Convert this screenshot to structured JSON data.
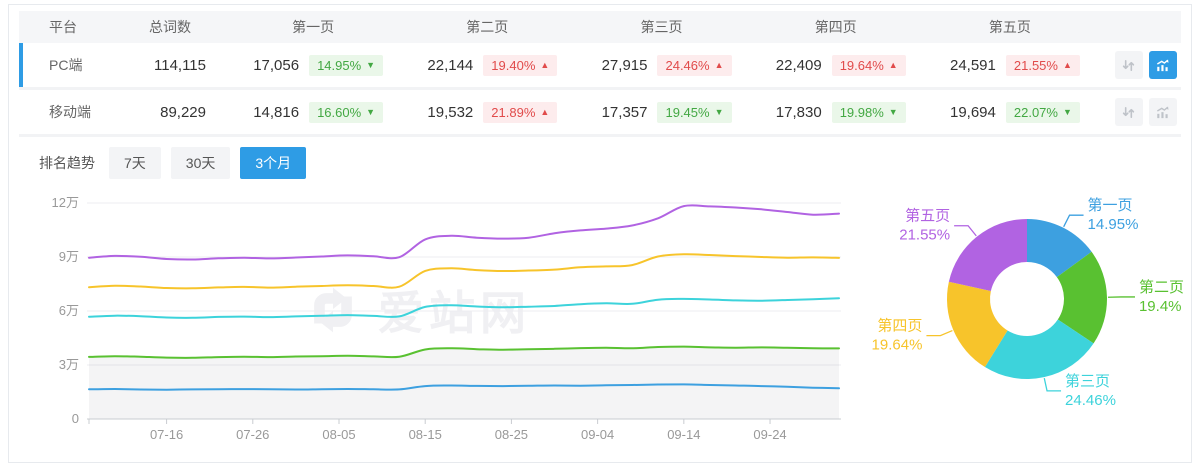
{
  "colors": {
    "accent": "#2e9ce5",
    "up_red": "#e14b4b",
    "down_green": "#43a843",
    "page1": "#3da0e0",
    "page2": "#59c131",
    "page3": "#3dd3db",
    "page4": "#f7c42b",
    "page5": "#b163e2"
  },
  "table": {
    "columns": [
      "平台",
      "总词数",
      "第一页",
      "第二页",
      "第三页",
      "第四页",
      "第五页"
    ],
    "rows": [
      {
        "platform": "PC端",
        "total": "114,115",
        "selected": true,
        "chart_active": true,
        "pages": [
          {
            "value": "17,056",
            "change": "14.95%",
            "direction": "down"
          },
          {
            "value": "22,144",
            "change": "19.40%",
            "direction": "up"
          },
          {
            "value": "27,915",
            "change": "24.46%",
            "direction": "up"
          },
          {
            "value": "22,409",
            "change": "19.64%",
            "direction": "up"
          },
          {
            "value": "24,591",
            "change": "21.55%",
            "direction": "up"
          }
        ]
      },
      {
        "platform": "移动端",
        "total": "89,229",
        "selected": false,
        "chart_active": false,
        "pages": [
          {
            "value": "14,816",
            "change": "16.60%",
            "direction": "down"
          },
          {
            "value": "19,532",
            "change": "21.89%",
            "direction": "up"
          },
          {
            "value": "17,357",
            "change": "19.45%",
            "direction": "down"
          },
          {
            "value": "17,830",
            "change": "19.98%",
            "direction": "down"
          },
          {
            "value": "19,694",
            "change": "22.07%",
            "direction": "down"
          }
        ]
      }
    ]
  },
  "trend": {
    "label": "排名趋势",
    "tabs": [
      {
        "label": "7天",
        "active": false
      },
      {
        "label": "30天",
        "active": false
      },
      {
        "label": "3个月",
        "active": true
      }
    ]
  },
  "watermark": {
    "text": "爱站网"
  },
  "chart_data": [
    {
      "type": "line",
      "title": "排名趋势 (3个月, PC端)",
      "stacked": true,
      "grid": true,
      "ylim": [
        0,
        120000
      ],
      "y_tick_labels": [
        "0",
        "3万",
        "6万",
        "9万",
        "12万"
      ],
      "x_tick_labels": [
        "07-16",
        "07-26",
        "08-05",
        "08-15",
        "08-25",
        "09-04",
        "09-14",
        "09-24"
      ],
      "x": [
        "07-07",
        "07-10",
        "07-13",
        "07-16",
        "07-19",
        "07-22",
        "07-25",
        "07-28",
        "07-31",
        "08-03",
        "08-06",
        "08-09",
        "08-12",
        "08-15",
        "08-18",
        "08-21",
        "08-24",
        "08-27",
        "08-30",
        "09-02",
        "09-05",
        "09-08",
        "09-11",
        "09-14",
        "09-17",
        "09-20",
        "09-23",
        "09-26",
        "09-29",
        "10-02"
      ],
      "area_series_index": 1,
      "series": [
        {
          "name": "第一页",
          "color": "#3da0e0",
          "values": [
            16500,
            16650,
            16400,
            16300,
            16450,
            16550,
            16600,
            16500,
            16400,
            16550,
            16650,
            16500,
            16450,
            18300,
            18600,
            18400,
            18300,
            18450,
            18600,
            18500,
            18700,
            18900,
            19150,
            19200,
            18900,
            18600,
            18300,
            17900,
            17400,
            17056
          ]
        },
        {
          "name": "第二页",
          "color": "#59c131",
          "values": [
            34500,
            34900,
            34600,
            34100,
            34000,
            34400,
            34600,
            34400,
            34700,
            34900,
            35100,
            34800,
            34600,
            38600,
            39300,
            38800,
            38500,
            38700,
            39000,
            39400,
            39600,
            39300,
            40000,
            40200,
            39800,
            39600,
            39800,
            39600,
            39300,
            39200
          ]
        },
        {
          "name": "第三页",
          "color": "#3dd3db",
          "values": [
            56800,
            57400,
            57100,
            56400,
            56200,
            56700,
            56900,
            56600,
            57000,
            57400,
            57700,
            57300,
            57000,
            62300,
            63200,
            62500,
            62100,
            62400,
            62800,
            63800,
            64300,
            64000,
            66300,
            66700,
            66400,
            65900,
            65700,
            66100,
            66500,
            67115
          ]
        },
        {
          "name": "第四页",
          "color": "#f7c42b",
          "values": [
            73200,
            74000,
            73600,
            72800,
            72600,
            73100,
            73400,
            73000,
            73500,
            73900,
            74300,
            73900,
            73500,
            82300,
            83700,
            82700,
            82200,
            82500,
            83000,
            84300,
            84800,
            85500,
            90300,
            91500,
            91100,
            90500,
            90000,
            89600,
            89800,
            89524
          ]
        },
        {
          "name": "第五页",
          "color": "#b163e2",
          "values": [
            89600,
            90600,
            90100,
            88900,
            88600,
            89300,
            89600,
            89200,
            89700,
            90300,
            90900,
            90400,
            89900,
            99800,
            101800,
            100700,
            100200,
            100700,
            103200,
            104800,
            105800,
            107500,
            111500,
            118300,
            118100,
            117500,
            116500,
            115000,
            113500,
            114115
          ]
        }
      ]
    },
    {
      "type": "pie",
      "title": "PC端 各页占比",
      "donut": true,
      "slices": [
        {
          "label": "第一页",
          "value": 14.95,
          "display": "14.95%",
          "color": "#3da0e0"
        },
        {
          "label": "第二页",
          "value": 19.4,
          "display": "19.4%",
          "color": "#59c131"
        },
        {
          "label": "第三页",
          "value": 24.46,
          "display": "24.46%",
          "color": "#3dd3db"
        },
        {
          "label": "第四页",
          "value": 19.64,
          "display": "19.64%",
          "color": "#f7c42b"
        },
        {
          "label": "第五页",
          "value": 21.55,
          "display": "21.55%",
          "color": "#b163e2"
        }
      ]
    }
  ]
}
